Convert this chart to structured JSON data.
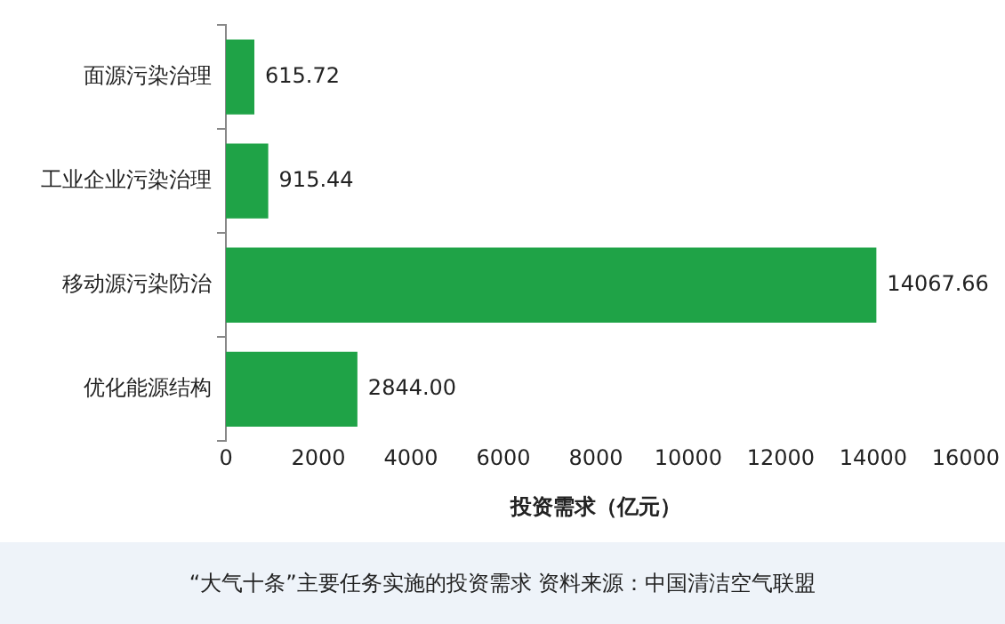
{
  "chart_data": {
    "type": "bar",
    "orientation": "horizontal",
    "categories": [
      "面源污染治理",
      "工业企业污染治理",
      "移动源污染防治",
      "优化能源结构"
    ],
    "values": [
      615.72,
      915.44,
      14067.66,
      2844.0
    ],
    "value_labels": [
      "615.72",
      "915.44",
      "14067.66",
      "2844.00"
    ],
    "color": "#1fa347",
    "xlim": [
      0,
      16000
    ],
    "xticks": [
      0,
      2000,
      4000,
      6000,
      8000,
      10000,
      12000,
      14000,
      16000
    ],
    "xlabel": "投资需求（亿元）",
    "grid": false,
    "legend": false,
    "annotations": [
      "“大气十条”主要任务实施的投资需求  资料来源：中国清洁空气联盟"
    ]
  }
}
